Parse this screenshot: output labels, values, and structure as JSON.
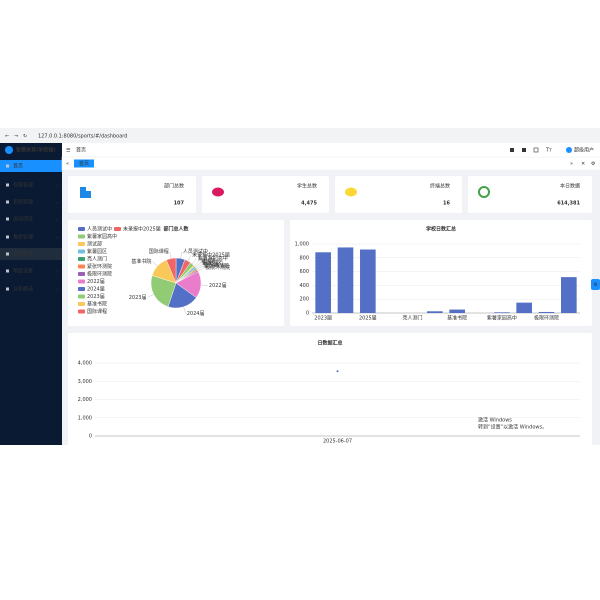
{
  "browser": {
    "url": "127.0.0.1:8080/sports/#/dashboard"
  },
  "sidebar": {
    "title": "智慧体育(学校端)",
    "menu": [
      "首页",
      "权限管理",
      "系统管理",
      "运动项目",
      "角色管理",
      "赛程管理",
      "明星设置",
      "业务精选"
    ]
  },
  "header": {
    "breadcrumb": "首页",
    "user": "超级用户"
  },
  "tabs": [
    "首页"
  ],
  "stats": [
    {
      "label": "部门总数",
      "value": "107"
    },
    {
      "label": "学生总数",
      "value": "4,475"
    },
    {
      "label": "终端总数",
      "value": "16"
    },
    {
      "label": "本日数据",
      "value": "614,381"
    }
  ],
  "chart_data": [
    {
      "type": "pie",
      "title": "部门总人数",
      "categories": [
        "人员测试中",
        "未录报中2025届",
        "紫薯家园高中",
        "测试部",
        "紫薯园区",
        "亮人测门",
        "紧张环测院",
        "极限环测院",
        "2022届",
        "2024届",
        "2023届",
        "基准书院",
        "国际课程"
      ],
      "values": [
        260,
        180,
        120,
        40,
        60,
        30,
        50,
        40,
        780,
        900,
        1100,
        620,
        280
      ],
      "colors": [
        "#5470c6",
        "#ee6666",
        "#91cc75",
        "#fac858",
        "#73c0de",
        "#3ba272",
        "#fc8452",
        "#9a60b4",
        "#ea7ccc",
        "#5470c6",
        "#91cc75",
        "#fac858",
        "#ee6666"
      ]
    },
    {
      "type": "bar",
      "title": "学校日数汇总",
      "categories": [
        "2023届",
        null,
        "2025届",
        null,
        "亮人测门",
        null,
        "基准书院",
        null,
        "紫薯家园高中",
        null,
        "极限环测院",
        null
      ],
      "values": [
        880,
        950,
        920,
        0,
        0,
        25,
        50,
        0,
        10,
        150,
        15,
        520
      ],
      "color": "#5470c6",
      "ylim": [
        0,
        1000
      ],
      "yticks": [
        0,
        200,
        400,
        600,
        800,
        {
          "value": 1000,
          "label": "1,000"
        }
      ],
      "grid": true
    },
    {
      "type": "line",
      "title": "日数据汇总",
      "categories": [
        "2025-06-07"
      ],
      "values": [
        3550
      ],
      "color": "#5470c6",
      "ylim": [
        0,
        4000
      ],
      "yticks": [
        0,
        {
          "value": 1000,
          "label": "1,000"
        },
        {
          "value": 2000,
          "label": "2,000"
        },
        {
          "value": 3000,
          "label": "3,000"
        },
        {
          "value": 4000,
          "label": "4,000"
        }
      ],
      "grid": true
    }
  ],
  "watermark": {
    "title": "激活 Windows",
    "text": "转到“设置”以激活 Windows。"
  }
}
